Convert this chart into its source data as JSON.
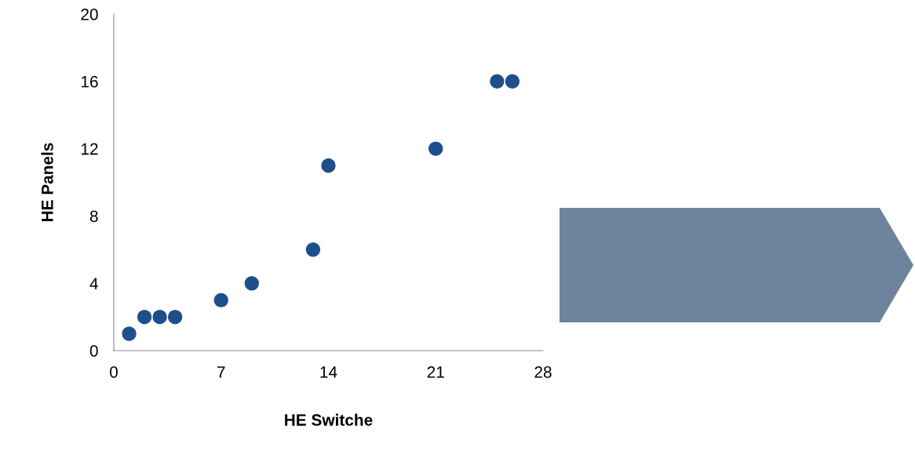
{
  "chart_data": {
    "type": "scatter",
    "xlabel": "HE Switche",
    "ylabel": "HE Panels",
    "x": [
      1,
      2,
      3,
      4,
      7,
      9,
      13,
      14,
      21,
      25,
      26
    ],
    "series": [
      {
        "color": "#1f4e8c",
        "values": [
          1,
          2,
          2,
          2,
          3,
          4,
          6,
          11,
          12,
          16,
          16
        ]
      }
    ],
    "xlim": [
      0,
      28
    ],
    "xticks": [
      0,
      7,
      14,
      21,
      28
    ],
    "ylim": [
      0,
      20
    ],
    "yticks": [
      0,
      4,
      8,
      12,
      16,
      20
    ],
    "marker": "circle",
    "grid": false,
    "legend": false
  }
}
